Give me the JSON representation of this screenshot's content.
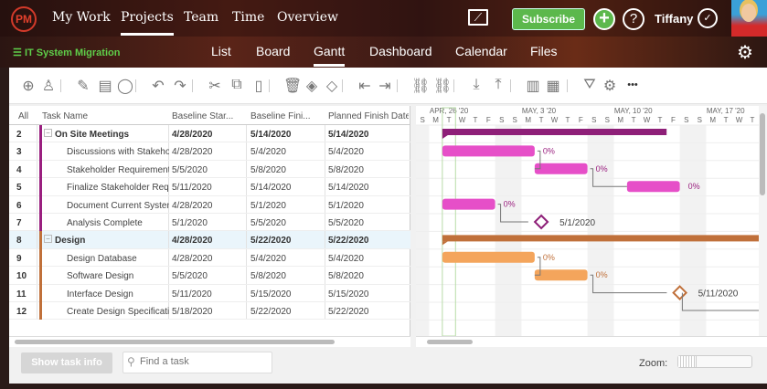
{
  "topnav": {
    "logo": "PM",
    "items": [
      "My Work",
      "Projects",
      "Team",
      "Time",
      "Overview"
    ],
    "active": 1,
    "subscribe": "Subscribe",
    "user": "Tiffany"
  },
  "subnav": {
    "project": "IT System Migration",
    "tabs": [
      "List",
      "Board",
      "Gantt",
      "Dashboard",
      "Calendar",
      "Files"
    ],
    "active": 2
  },
  "toolbar": {
    "icons": [
      "add-icon",
      "assign-user-icon",
      "attachment-icon",
      "notes-icon",
      "comment-icon",
      "undo-icon",
      "redo-icon",
      "cut-icon",
      "copy-icon",
      "paste-icon",
      "delete-icon",
      "fill-color-icon",
      "milestone-icon",
      "outdent-icon",
      "indent-icon",
      "link-icon",
      "unlink-icon",
      "import-icon",
      "export-icon",
      "columns-icon",
      "grid-icon",
      "filter-icon",
      "settings-icon",
      "more-icon"
    ]
  },
  "grid": {
    "headers": [
      "All",
      "Task Name",
      "Baseline Star...",
      "Baseline Fini...",
      "Planned Finish Date"
    ],
    "rows": [
      {
        "id": "2",
        "name": "On Site Meetings",
        "bstart": "4/28/2020",
        "bfinish": "5/14/2020",
        "pfinish": "5/14/2020",
        "group": true,
        "color": "#9a1f7f"
      },
      {
        "id": "3",
        "name": "Discussions with Stakehol",
        "bstart": "4/28/2020",
        "bfinish": "5/4/2020",
        "pfinish": "5/4/2020",
        "color": "#9a1f7f"
      },
      {
        "id": "4",
        "name": "Stakeholder Requirements",
        "bstart": "5/5/2020",
        "bfinish": "5/8/2020",
        "pfinish": "5/8/2020",
        "color": "#9a1f7f"
      },
      {
        "id": "5",
        "name": "Finalize Stakeholder Requi",
        "bstart": "5/11/2020",
        "bfinish": "5/14/2020",
        "pfinish": "5/14/2020",
        "color": "#9a1f7f"
      },
      {
        "id": "6",
        "name": "Document Current System",
        "bstart": "4/28/2020",
        "bfinish": "5/1/2020",
        "pfinish": "5/1/2020",
        "color": "#9a1f7f"
      },
      {
        "id": "7",
        "name": "Analysis Complete",
        "bstart": "5/1/2020",
        "bfinish": "5/5/2020",
        "pfinish": "5/5/2020",
        "color": "#9a1f7f"
      },
      {
        "id": "8",
        "name": "Design",
        "bstart": "4/28/2020",
        "bfinish": "5/22/2020",
        "pfinish": "5/22/2020",
        "group": true,
        "color": "#c0703a"
      },
      {
        "id": "9",
        "name": "Design Database",
        "bstart": "4/28/2020",
        "bfinish": "5/4/2020",
        "pfinish": "5/4/2020",
        "color": "#c0703a"
      },
      {
        "id": "10",
        "name": "Software Design",
        "bstart": "5/5/2020",
        "bfinish": "5/8/2020",
        "pfinish": "5/8/2020",
        "color": "#c0703a"
      },
      {
        "id": "11",
        "name": "Interface Design",
        "bstart": "5/11/2020",
        "bfinish": "5/15/2020",
        "pfinish": "5/15/2020",
        "color": "#c0703a"
      },
      {
        "id": "12",
        "name": "Create Design Specificatio",
        "bstart": "5/18/2020",
        "bfinish": "5/22/2020",
        "pfinish": "5/22/2020",
        "color": "#c0703a"
      }
    ]
  },
  "gantt": {
    "weeks": [
      "APR, 26 '20",
      "MAY, 3 '20",
      "MAY, 10 '20",
      "MAY, 17 '20"
    ],
    "days": [
      "S",
      "M",
      "T",
      "W",
      "T",
      "F",
      "S"
    ],
    "tasks": [
      {
        "row": 0,
        "type": "summary",
        "start": 2,
        "end": 19,
        "color": "#8e1f78"
      },
      {
        "row": 1,
        "type": "bar",
        "start": 2,
        "end": 9,
        "color": "#e64fc8",
        "progress": "0%"
      },
      {
        "row": 2,
        "type": "bar",
        "start": 9,
        "end": 13,
        "color": "#e64fc8",
        "progress": "0%"
      },
      {
        "row": 3,
        "type": "bar",
        "start": 16,
        "end": 20,
        "color": "#e64fc8",
        "progress": "0%"
      },
      {
        "row": 4,
        "type": "bar",
        "start": 2,
        "end": 6,
        "color": "#e64fc8",
        "progress": "0%"
      },
      {
        "row": 5,
        "type": "milestone",
        "start": 9,
        "color": "#8e1f78",
        "label": "5/1/2020"
      },
      {
        "row": 6,
        "type": "summary",
        "start": 2,
        "end": 30,
        "color": "#c0703a"
      },
      {
        "row": 7,
        "type": "bar",
        "start": 2,
        "end": 9,
        "color": "#f4a55c",
        "progress": "0%"
      },
      {
        "row": 8,
        "type": "bar",
        "start": 9,
        "end": 13,
        "color": "#f4a55c",
        "progress": "0%"
      },
      {
        "row": 9,
        "type": "milestone",
        "start": 19.5,
        "color": "#c0703a",
        "label": "5/11/2020"
      }
    ]
  },
  "footer": {
    "show_task_info": "Show task info",
    "find_placeholder": "Find a task",
    "zoom_label": "Zoom:"
  }
}
